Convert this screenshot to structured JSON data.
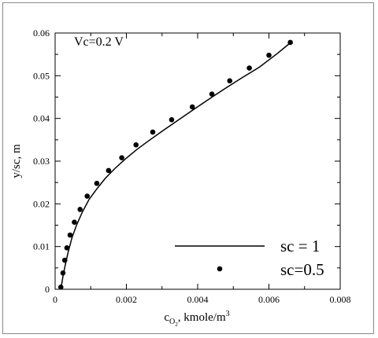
{
  "chart_data": {
    "type": "line",
    "xlabel_parts": {
      "c": "c",
      "sub": "O",
      "subsub": "2",
      "rest": ", kmole/m",
      "sup": "3"
    },
    "ylabel": "y/sc, m",
    "annotation": "Vc=0.2 V",
    "xlim": [
      0,
      0.008
    ],
    "ylim": [
      0,
      0.06
    ],
    "xticks": [
      0,
      0.002,
      0.004,
      0.006,
      0.008
    ],
    "xtick_labels": [
      "0",
      "0.002",
      "0.004",
      "0.006",
      "0.008"
    ],
    "yticks": [
      0,
      0.01,
      0.02,
      0.03,
      0.04,
      0.05,
      0.06
    ],
    "ytick_labels": [
      "0",
      "0.01",
      "0.02",
      "0.03",
      "0.04",
      "0.05",
      "0.06"
    ],
    "grid": false,
    "legend_position": "bottom-right",
    "series": [
      {
        "name": "sc = 1",
        "style": "line",
        "color": "#000000",
        "x": [
          0.00015,
          0.00018,
          0.00022,
          0.00028,
          0.00036,
          0.00047,
          0.0006,
          0.00076,
          0.00095,
          0.00117,
          0.00141,
          0.00168,
          0.00197,
          0.00229,
          0.00263,
          0.003,
          0.0034,
          0.00382,
          0.00426,
          0.00473,
          0.00522,
          0.00573,
          0.00625,
          0.0066
        ],
        "y": [
          0.0,
          0.001,
          0.003,
          0.0055,
          0.0085,
          0.012,
          0.015,
          0.018,
          0.021,
          0.0235,
          0.026,
          0.0283,
          0.0305,
          0.0327,
          0.0348,
          0.037,
          0.0393,
          0.0417,
          0.0442,
          0.0468,
          0.0494,
          0.052,
          0.0553,
          0.0577
        ]
      },
      {
        "name": "sc=0.5",
        "style": "markers",
        "color": "#000000",
        "x": [
          0.00016,
          0.00022,
          0.00027,
          0.00033,
          0.00042,
          0.00054,
          0.0007,
          0.0009,
          0.00117,
          0.0015,
          0.00187,
          0.00227,
          0.00274,
          0.00327,
          0.00385,
          0.0044,
          0.0049,
          0.00545,
          0.006,
          0.0066
        ],
        "y": [
          0.0005,
          0.0038,
          0.0068,
          0.0097,
          0.0127,
          0.0157,
          0.0187,
          0.0218,
          0.0248,
          0.0278,
          0.0308,
          0.0338,
          0.0368,
          0.0397,
          0.0427,
          0.0457,
          0.0488,
          0.0518,
          0.0548,
          0.0578
        ]
      }
    ]
  }
}
